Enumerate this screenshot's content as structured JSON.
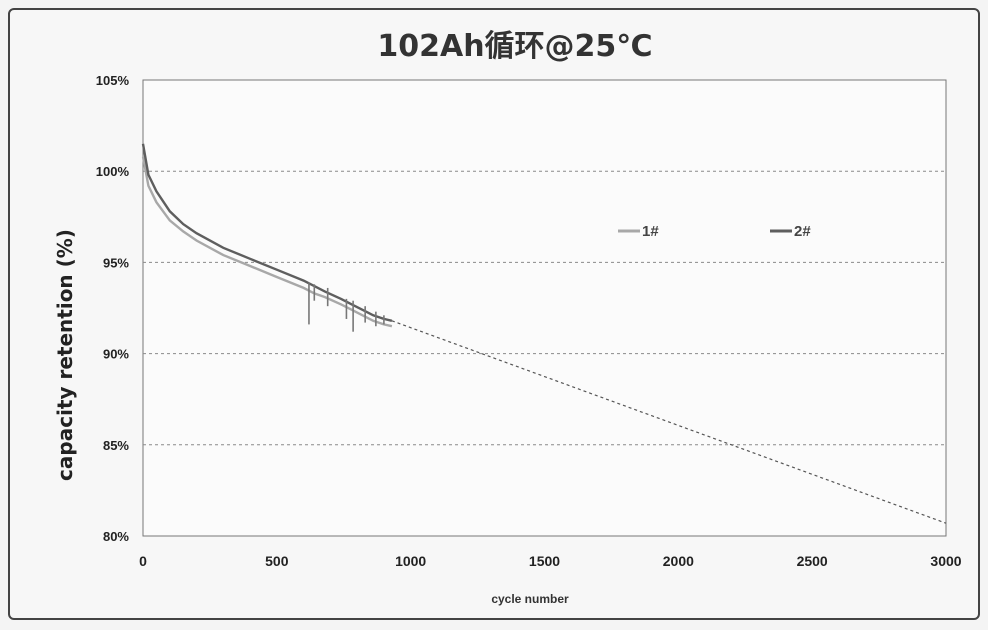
{
  "chart_data": {
    "type": "line",
    "title": "102Ah循环@25℃",
    "xlabel": "cycle number",
    "ylabel": "capacity retention (%)",
    "xlim": [
      0,
      3000
    ],
    "ylim": [
      80,
      105
    ],
    "xticks": [
      "0",
      "500",
      "1000",
      "1500",
      "2000",
      "2500",
      "3000"
    ],
    "yticks": [
      "80%",
      "85%",
      "90%",
      "95%",
      "100%",
      "105%"
    ],
    "grid": "horizontal dashed",
    "legend_position": "right-middle",
    "series": [
      {
        "name": "1#",
        "color": "#a8a8a8",
        "x": [
          0,
          20,
          50,
          100,
          150,
          200,
          300,
          400,
          500,
          600,
          640,
          680,
          740,
          780,
          820,
          860,
          900,
          930
        ],
        "y": [
          100.8,
          99.2,
          98.3,
          97.3,
          96.7,
          96.2,
          95.4,
          94.8,
          94.2,
          93.6,
          93.3,
          93.1,
          92.7,
          92.4,
          92.1,
          91.8,
          91.6,
          91.5
        ]
      },
      {
        "name": "2#",
        "color": "#5e5e5e",
        "x": [
          0,
          20,
          50,
          100,
          150,
          200,
          300,
          400,
          500,
          600,
          640,
          680,
          740,
          780,
          820,
          860,
          900,
          930
        ],
        "y": [
          101.5,
          99.8,
          98.9,
          97.8,
          97.1,
          96.6,
          95.8,
          95.2,
          94.6,
          94.0,
          93.7,
          93.4,
          93.0,
          92.7,
          92.4,
          92.1,
          91.9,
          91.8
        ]
      },
      {
        "name": "",
        "style": "dashed",
        "color": "#555555",
        "x": [
          930,
          3000
        ],
        "y": [
          91.8,
          80.7
        ]
      }
    ]
  }
}
